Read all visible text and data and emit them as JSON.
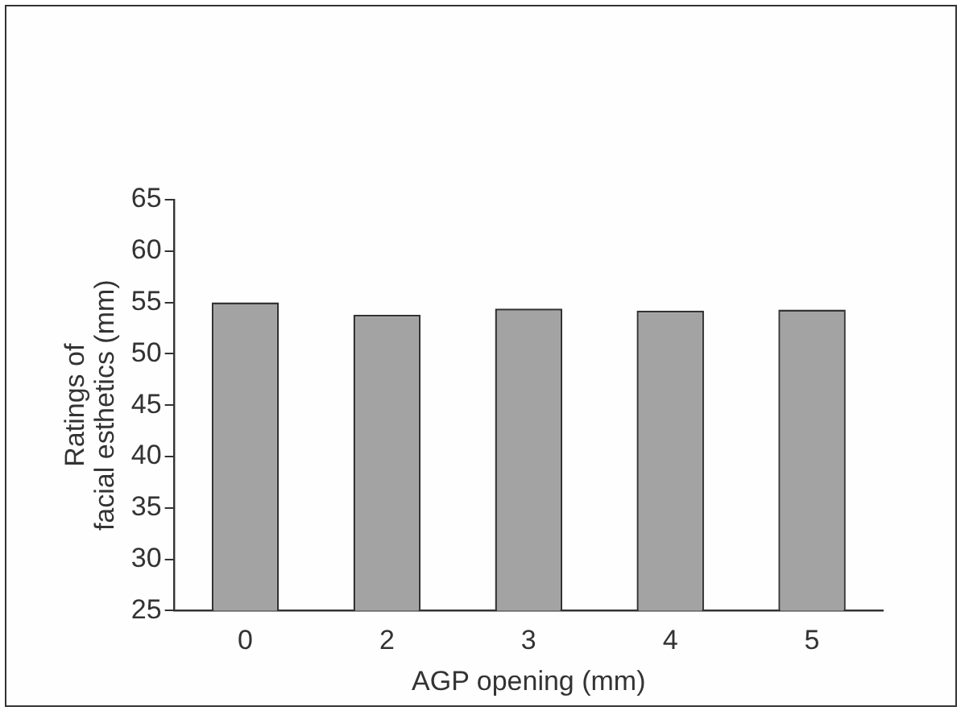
{
  "chart_data": {
    "type": "bar",
    "xlabel": "AGP opening (mm)",
    "ylabel": "Ratings of\nfacial esthetics (mm)",
    "categories": [
      "0",
      "2",
      "3",
      "4",
      "5"
    ],
    "values": [
      55,
      53.8,
      54.4,
      54.2,
      54.3
    ],
    "color": "#a3a3a3",
    "ylim": [
      25,
      65
    ],
    "yticks": [
      25,
      30,
      35,
      40,
      45,
      50,
      55,
      60,
      65
    ],
    "grid": false,
    "legend": false
  }
}
